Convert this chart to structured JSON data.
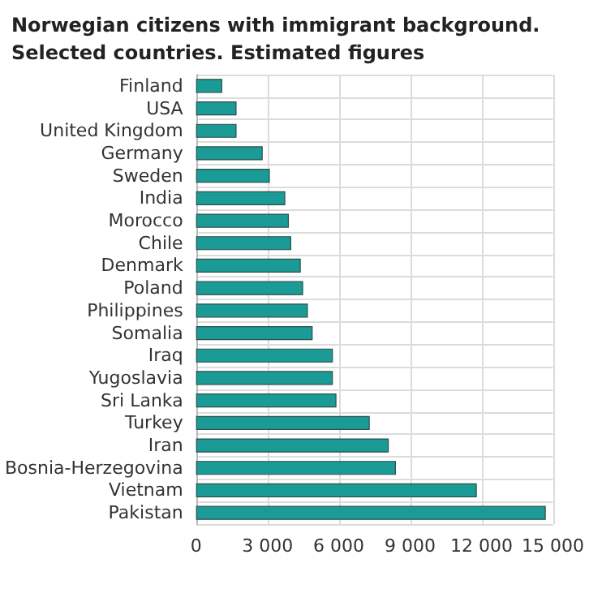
{
  "chart_data": {
    "type": "bar",
    "orientation": "horizontal",
    "title": "Norwegian citizens with immigrant background.\nSelected countries. Estimated figures",
    "categories": [
      "Finland",
      "USA",
      "United Kingdom",
      "Germany",
      "Sweden",
      "India",
      "Morocco",
      "Chile",
      "Denmark",
      "Poland",
      "Philippines",
      "Somalia",
      "Iraq",
      "Yugoslavia",
      "Sri Lanka",
      "Turkey",
      "Iran",
      "Bosnia-Herzegovina",
      "Vietnam",
      "Pakistan"
    ],
    "values": [
      1100,
      1700,
      1700,
      2800,
      3100,
      3750,
      3900,
      4000,
      4400,
      4500,
      4700,
      4900,
      5750,
      5750,
      5900,
      7300,
      8100,
      8400,
      11800,
      14700
    ],
    "color": "#1a9b96",
    "xlim": [
      0,
      15000
    ],
    "xticks": [
      0,
      {
        "value": 3000,
        "label": "3 000"
      },
      {
        "value": 6000,
        "label": "6 000"
      },
      {
        "value": 9000,
        "label": "9 000"
      },
      {
        "value": 12000,
        "label": "12 000"
      },
      {
        "value": 15000,
        "label": "15 000"
      }
    ],
    "grid": true
  }
}
